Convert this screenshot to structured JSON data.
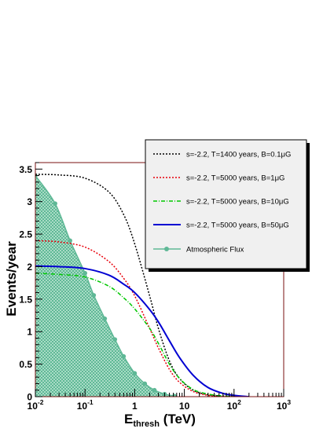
{
  "chart_data": {
    "type": "line",
    "xlabel": "E_thresh (TeV)",
    "xlabel_main": "E",
    "xlabel_sub": "thresh",
    "xlabel_unit": " (TeV)",
    "ylabel": "Events/year",
    "x_scale": "log",
    "xlim": [
      0.01,
      1000
    ],
    "ylim": [
      0,
      3.6
    ],
    "grid": false,
    "legend_position": "top-right",
    "y_ticks": [
      "0",
      "0.5",
      "1",
      "1.5",
      "2",
      "2.5",
      "3",
      "3.5"
    ],
    "x_ticks": [
      {
        "base": "10",
        "exp": "-2"
      },
      {
        "base": "10",
        "exp": "-1"
      },
      {
        "base": "1",
        "exp": ""
      },
      {
        "base": "10",
        "exp": ""
      },
      {
        "base": "10",
        "exp": "2"
      },
      {
        "base": "10",
        "exp": "3"
      }
    ],
    "series": [
      {
        "name": "s=-2.2, T=1400 years, B=0.1μG",
        "color": "#000000",
        "style": "dotted",
        "x": [
          0.01,
          0.03,
          0.1,
          0.3,
          0.6,
          1,
          2,
          3,
          5,
          8,
          15,
          30,
          60,
          100,
          200
        ],
        "y": [
          3.42,
          3.41,
          3.36,
          3.15,
          2.8,
          2.35,
          1.55,
          1.05,
          0.55,
          0.28,
          0.1,
          0.03,
          0.01,
          0.0,
          0.0
        ]
      },
      {
        "name": "s=-2.2, T=5000 years, B=1μG",
        "color": "#e8000b",
        "style": "dotted",
        "x": [
          0.01,
          0.03,
          0.1,
          0.3,
          0.6,
          1,
          2,
          3,
          5,
          8,
          15,
          30,
          60,
          100
        ],
        "y": [
          2.4,
          2.38,
          2.3,
          2.08,
          1.82,
          1.55,
          1.05,
          0.75,
          0.42,
          0.22,
          0.08,
          0.02,
          0.0,
          0.0
        ]
      },
      {
        "name": "s=-2.2, T=5000 years, B=10μG",
        "color": "#00c800",
        "style": "dashdot",
        "x": [
          0.01,
          0.03,
          0.1,
          0.3,
          0.6,
          1,
          2,
          3,
          5,
          8,
          15,
          30,
          60,
          100
        ],
        "y": [
          1.9,
          1.88,
          1.84,
          1.7,
          1.52,
          1.35,
          1.05,
          0.82,
          0.5,
          0.28,
          0.11,
          0.04,
          0.01,
          0.0
        ]
      },
      {
        "name": "s=-2.2, T=5000 years, B=50μG",
        "color": "#0000d2",
        "style": "solid",
        "x": [
          0.01,
          0.03,
          0.1,
          0.3,
          0.6,
          1,
          2,
          3,
          5,
          8,
          15,
          30,
          60,
          100,
          200
        ],
        "y": [
          2.01,
          2.0,
          1.97,
          1.87,
          1.73,
          1.6,
          1.34,
          1.15,
          0.86,
          0.6,
          0.33,
          0.14,
          0.05,
          0.02,
          0.0
        ]
      },
      {
        "name": "Atmospheric Flux",
        "color": "#5fb896",
        "style": "filled-markers",
        "x": [
          0.01,
          0.025,
          0.05,
          0.1,
          0.15,
          0.25,
          0.4,
          0.6,
          1,
          1.6,
          2.5,
          4,
          6.3
        ],
        "y": [
          3.4,
          2.97,
          2.4,
          1.9,
          1.56,
          1.2,
          0.88,
          0.62,
          0.36,
          0.2,
          0.1,
          0.04,
          0.01
        ]
      }
    ]
  }
}
